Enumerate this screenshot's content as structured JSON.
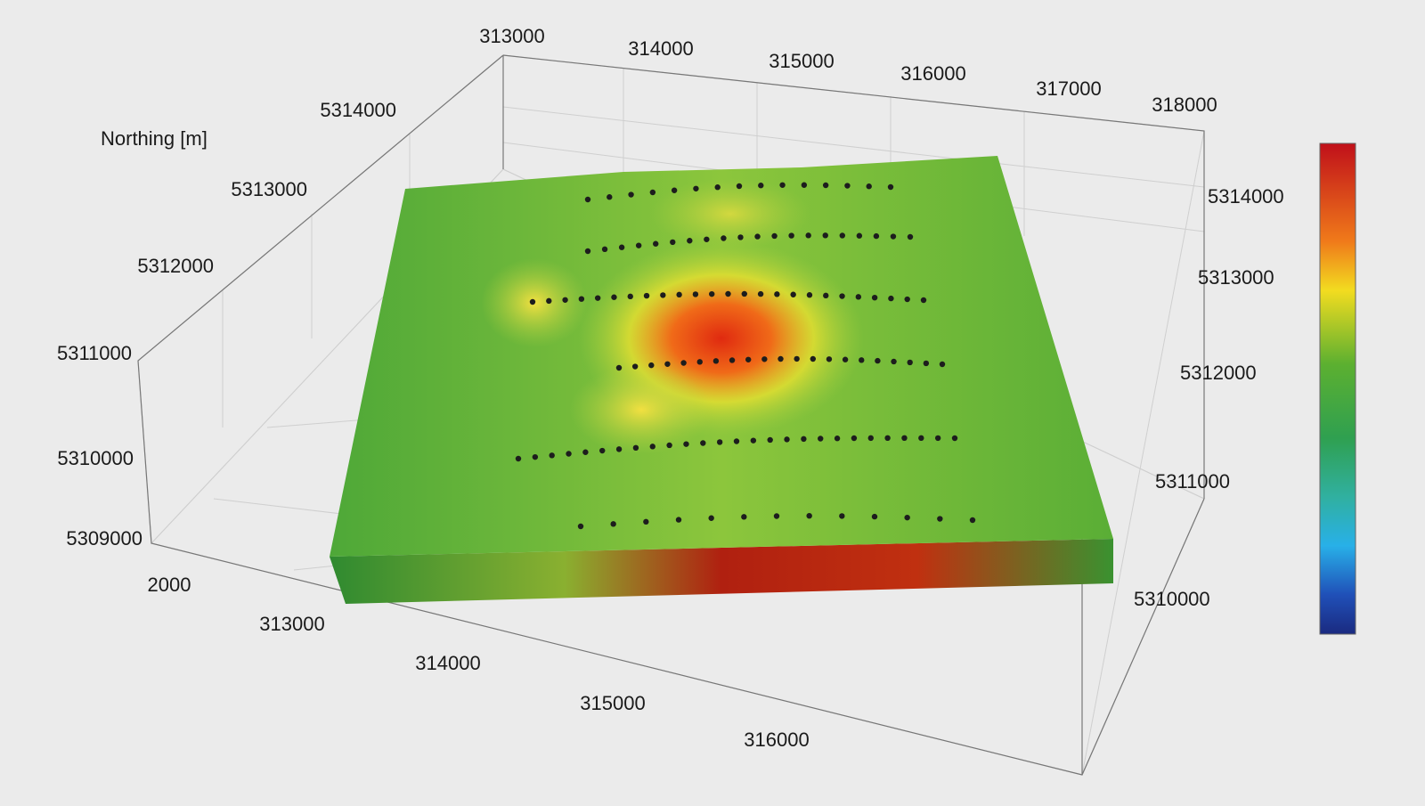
{
  "axis_title": "Northing [m]",
  "top_easting_ticks": [
    "313000",
    "314000",
    "315000",
    "316000",
    "317000",
    "318000"
  ],
  "left_northing_ticks": [
    "5314000",
    "5313000",
    "5312000",
    "5311000",
    "5310000",
    "5309000"
  ],
  "right_northing_ticks": [
    "5314000",
    "5313000",
    "5312000",
    "5311000",
    "5310000"
  ],
  "bottom_easting_ticks": [
    "313000",
    "314000",
    "315000",
    "316000"
  ],
  "elevation_tick": "2000"
}
